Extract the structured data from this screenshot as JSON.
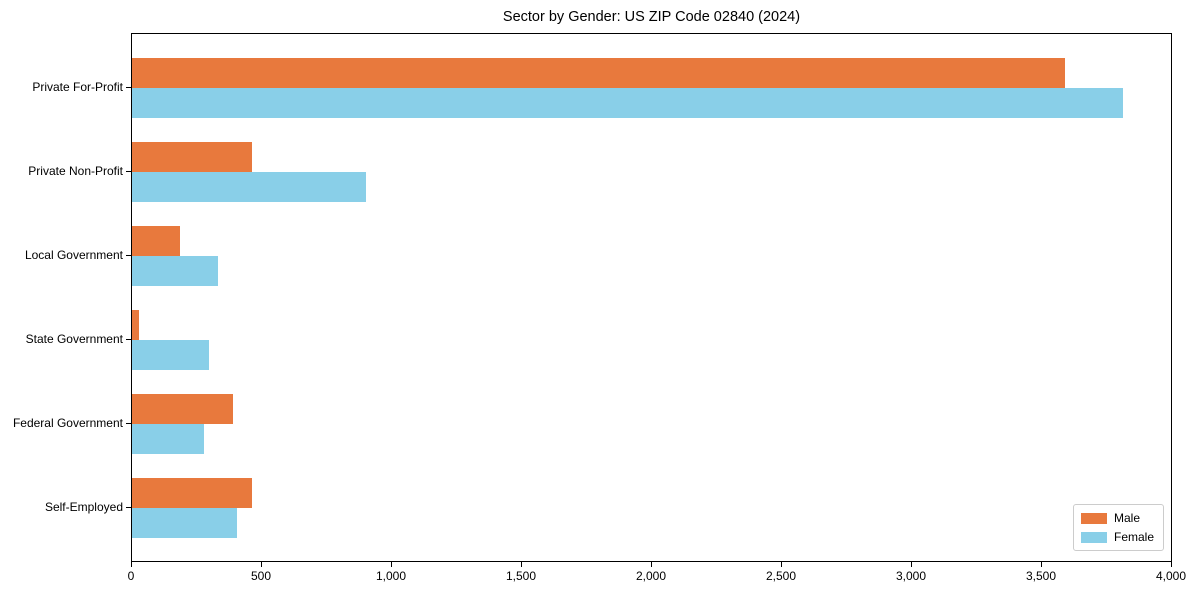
{
  "chart_data": {
    "type": "bar",
    "orientation": "horizontal",
    "title": "Sector by Gender: US ZIP Code 02840 (2024)",
    "categories": [
      "Private For-Profit",
      "Private Non-Profit",
      "Local Government",
      "State Government",
      "Federal Government",
      "Self-Employed"
    ],
    "series": [
      {
        "name": "Male",
        "color": "#E8793D",
        "values": [
          3590,
          460,
          185,
          25,
          390,
          460
        ]
      },
      {
        "name": "Female",
        "color": "#89CFE8",
        "values": [
          3810,
          900,
          330,
          295,
          275,
          405
        ]
      }
    ],
    "xlim": [
      0,
      4000
    ],
    "xticks": [
      0,
      500,
      1000,
      1500,
      2000,
      2500,
      3000,
      3500,
      4000
    ],
    "xtick_labels": [
      "0",
      "500",
      "1,000",
      "1,500",
      "2,000",
      "2,500",
      "3,000",
      "3,500",
      "4,000"
    ],
    "legend_position": "lower right",
    "grid": false,
    "background": "#ffffff",
    "spine_color": "#000000"
  }
}
